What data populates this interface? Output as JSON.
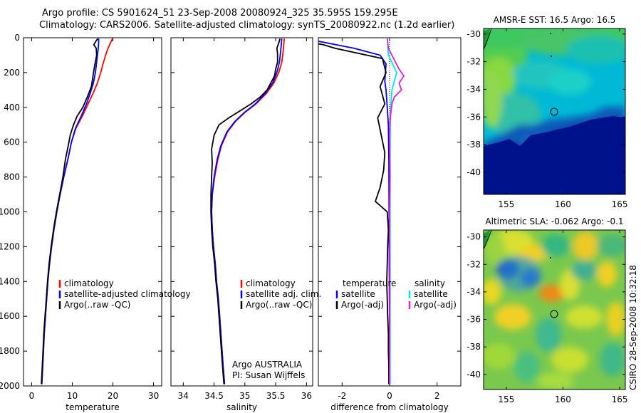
{
  "header": {
    "line1": "Argo profile: CS 5901624_51 23-Sep-2008 20080924_325 35.595S 159.295E",
    "line2": "Climatology: CARS2006. Satellite-adjusted climatology: synTS_20080922.nc (1.2d earlier)"
  },
  "side_text": "CSIRO 28-Sep-2008 10:32:18",
  "colors": {
    "climatology": "#ff0000",
    "satellite": "#0000ff",
    "argo": "#000000",
    "cyan": "#00e5ee",
    "magenta": "#e020e0"
  },
  "chart_data": [
    {
      "type": "line",
      "xlabel": "temperature",
      "ylabel": "",
      "xlim": [
        -2,
        32
      ],
      "ylim": [
        2000,
        0
      ],
      "xticks": [
        0,
        10,
        20,
        30
      ],
      "yticks": [
        0,
        200,
        400,
        600,
        800,
        1000,
        1200,
        1400,
        1600,
        1800,
        2000
      ],
      "legend": [
        "climatology",
        "satellite-adjusted climatology",
        "Argo(..raw -QC)"
      ],
      "series": [
        {
          "name": "climatology",
          "color": "#ff0000",
          "points": [
            [
              19.9,
              5
            ],
            [
              19.6,
              20
            ],
            [
              18.8,
              60
            ],
            [
              18.2,
              100
            ],
            [
              17.7,
              140
            ],
            [
              17.0,
              200
            ],
            [
              16.2,
              260
            ],
            [
              15.1,
              320
            ],
            [
              13.9,
              380
            ],
            [
              12.5,
              450
            ],
            [
              10.9,
              520
            ],
            [
              9.8,
              600
            ],
            [
              8.9,
              700
            ],
            [
              7.9,
              800
            ],
            [
              7.0,
              900
            ],
            [
              6.2,
              1000
            ],
            [
              5.5,
              1100
            ],
            [
              4.9,
              1200
            ],
            [
              4.4,
              1300
            ],
            [
              4.0,
              1400
            ],
            [
              3.7,
              1500
            ],
            [
              3.4,
              1600
            ],
            [
              3.1,
              1700
            ],
            [
              2.9,
              1800
            ],
            [
              2.7,
              1900
            ],
            [
              2.5,
              1990
            ]
          ]
        },
        {
          "name": "satellite-adjusted climatology",
          "color": "#0000ff",
          "points": [
            [
              16.5,
              5
            ],
            [
              16.5,
              20
            ],
            [
              16.4,
              60
            ],
            [
              16.2,
              100
            ],
            [
              16.0,
              140
            ],
            [
              15.7,
              200
            ],
            [
              15.2,
              260
            ],
            [
              14.4,
              320
            ],
            [
              13.5,
              380
            ],
            [
              12.2,
              450
            ],
            [
              10.8,
              520
            ],
            [
              9.8,
              600
            ],
            [
              8.9,
              700
            ],
            [
              7.9,
              800
            ],
            [
              7.0,
              900
            ],
            [
              6.2,
              1000
            ],
            [
              5.5,
              1100
            ],
            [
              4.9,
              1200
            ],
            [
              4.4,
              1300
            ],
            [
              4.0,
              1400
            ],
            [
              3.7,
              1500
            ],
            [
              3.4,
              1600
            ],
            [
              3.1,
              1700
            ],
            [
              2.9,
              1800
            ],
            [
              2.7,
              1900
            ],
            [
              2.5,
              1990
            ]
          ]
        },
        {
          "name": "Argo(..raw -QC)",
          "color": "#000000",
          "points": [
            [
              16.3,
              5
            ],
            [
              15.8,
              20
            ],
            [
              15.3,
              40
            ],
            [
              15.9,
              60
            ],
            [
              16.0,
              100
            ],
            [
              15.5,
              160
            ],
            [
              15.1,
              220
            ],
            [
              14.7,
              280
            ],
            [
              13.7,
              340
            ],
            [
              12.6,
              400
            ],
            [
              11.2,
              450
            ],
            [
              10.3,
              500
            ],
            [
              9.5,
              560
            ],
            [
              9.0,
              620
            ],
            [
              8.3,
              700
            ],
            [
              7.7,
              800
            ],
            [
              6.9,
              900
            ],
            [
              6.1,
              1000
            ],
            [
              5.4,
              1100
            ],
            [
              4.8,
              1200
            ],
            [
              4.3,
              1300
            ],
            [
              3.9,
              1400
            ],
            [
              3.6,
              1500
            ],
            [
              3.3,
              1600
            ],
            [
              3.0,
              1700
            ],
            [
              2.8,
              1800
            ],
            [
              2.6,
              1900
            ],
            [
              2.4,
              1990
            ]
          ]
        }
      ]
    },
    {
      "type": "line",
      "xlabel": "salinity",
      "xlim": [
        33.8,
        36.1
      ],
      "ylim": [
        2000,
        0
      ],
      "xticks": [
        34,
        34.5,
        35,
        35.5,
        36
      ],
      "legend": [
        "climatology",
        "satellite adj. clim.",
        "Argo(..raw -QC)"
      ],
      "annotation": [
        "Argo AUSTRALIA",
        "PI: Susan Wijffels"
      ],
      "series": [
        {
          "name": "climatology",
          "color": "#ff0000",
          "points": [
            [
              35.64,
              5
            ],
            [
              35.63,
              40
            ],
            [
              35.62,
              80
            ],
            [
              35.6,
              140
            ],
            [
              35.55,
              200
            ],
            [
              35.47,
              260
            ],
            [
              35.35,
              320
            ],
            [
              35.18,
              380
            ],
            [
              35.0,
              430
            ],
            [
              34.85,
              480
            ],
            [
              34.72,
              540
            ],
            [
              34.62,
              620
            ],
            [
              34.56,
              700
            ],
            [
              34.51,
              800
            ],
            [
              34.47,
              900
            ],
            [
              34.46,
              1000
            ],
            [
              34.47,
              1100
            ],
            [
              34.49,
              1200
            ],
            [
              34.52,
              1300
            ],
            [
              34.54,
              1400
            ],
            [
              34.57,
              1500
            ],
            [
              34.59,
              1600
            ],
            [
              34.61,
              1700
            ],
            [
              34.63,
              1800
            ],
            [
              34.65,
              1900
            ],
            [
              34.67,
              1990
            ]
          ]
        },
        {
          "name": "satellite adj. clim.",
          "color": "#0000ff",
          "points": [
            [
              35.6,
              5
            ],
            [
              35.59,
              40
            ],
            [
              35.58,
              80
            ],
            [
              35.56,
              140
            ],
            [
              35.52,
              200
            ],
            [
              35.45,
              260
            ],
            [
              35.33,
              320
            ],
            [
              35.17,
              380
            ],
            [
              34.99,
              430
            ],
            [
              34.84,
              480
            ],
            [
              34.71,
              540
            ],
            [
              34.61,
              620
            ],
            [
              34.55,
              700
            ],
            [
              34.5,
              800
            ],
            [
              34.47,
              900
            ],
            [
              34.46,
              1000
            ],
            [
              34.47,
              1100
            ],
            [
              34.49,
              1200
            ],
            [
              34.52,
              1300
            ],
            [
              34.54,
              1400
            ],
            [
              34.57,
              1500
            ],
            [
              34.59,
              1600
            ],
            [
              34.61,
              1700
            ],
            [
              34.63,
              1800
            ],
            [
              34.65,
              1900
            ],
            [
              34.67,
              1990
            ]
          ]
        },
        {
          "name": "Argo(..raw -QC)",
          "color": "#000000",
          "points": [
            [
              35.57,
              5
            ],
            [
              35.55,
              30
            ],
            [
              35.52,
              60
            ],
            [
              35.53,
              90
            ],
            [
              35.53,
              140
            ],
            [
              35.5,
              180
            ],
            [
              35.48,
              220
            ],
            [
              35.42,
              260
            ],
            [
              35.36,
              300
            ],
            [
              35.25,
              340
            ],
            [
              35.1,
              380
            ],
            [
              34.92,
              420
            ],
            [
              34.74,
              460
            ],
            [
              34.58,
              500
            ],
            [
              34.5,
              560
            ],
            [
              34.46,
              640
            ],
            [
              34.47,
              720
            ],
            [
              34.46,
              800
            ],
            [
              34.45,
              900
            ],
            [
              34.45,
              1000
            ],
            [
              34.46,
              1100
            ],
            [
              34.48,
              1200
            ],
            [
              34.51,
              1300
            ],
            [
              34.53,
              1400
            ],
            [
              34.56,
              1500
            ],
            [
              34.58,
              1600
            ],
            [
              34.6,
              1700
            ],
            [
              34.62,
              1800
            ],
            [
              34.64,
              1900
            ],
            [
              34.66,
              1990
            ]
          ]
        }
      ]
    },
    {
      "type": "line",
      "xlabel": "difference from climatology",
      "xlim": [
        -3,
        3
      ],
      "ylim": [
        2000,
        0
      ],
      "xticks": [
        -2,
        0,
        2
      ],
      "legend_temperature": {
        "header": "temperature",
        "entries": [
          "satellite",
          "Argo(-adj)"
        ]
      },
      "legend_salinity": {
        "header": "salinity",
        "entries": [
          "satellite",
          "Argo(-adj)"
        ]
      },
      "series": [
        {
          "name": "satellite",
          "group": "temperature",
          "color": "#0000ff",
          "points": [
            [
              -3.0,
              20
            ],
            [
              -1.5,
              60
            ],
            [
              -0.4,
              100
            ],
            [
              -0.15,
              150
            ],
            [
              -0.2,
              250
            ],
            [
              -0.15,
              300
            ],
            [
              -0.1,
              400
            ],
            [
              -0.05,
              500
            ],
            [
              -0.03,
              700
            ],
            [
              -0.02,
              1000
            ],
            [
              -0.01,
              1500
            ],
            [
              0,
              1990
            ]
          ]
        },
        {
          "name": "Argo(-adj)",
          "group": "temperature",
          "color": "#000000",
          "points": [
            [
              -3.3,
              5
            ],
            [
              -3.2,
              30
            ],
            [
              -2.8,
              40
            ],
            [
              -2.3,
              60
            ],
            [
              -0.3,
              120
            ],
            [
              -0.15,
              200
            ],
            [
              -0.4,
              280
            ],
            [
              -0.2,
              380
            ],
            [
              -0.5,
              460
            ],
            [
              -0.35,
              560
            ],
            [
              -0.2,
              660
            ],
            [
              -0.25,
              760
            ],
            [
              -0.4,
              860
            ],
            [
              -0.6,
              940
            ],
            [
              -0.1,
              1000
            ],
            [
              -0.05,
              1100
            ],
            [
              -0.08,
              1200
            ],
            [
              -0.1,
              1300
            ],
            [
              -0.12,
              1400
            ],
            [
              -0.1,
              1500
            ],
            [
              -0.08,
              1600
            ],
            [
              -0.05,
              1700
            ],
            [
              -0.05,
              1800
            ],
            [
              -0.03,
              1900
            ],
            [
              -0.03,
              1990
            ]
          ]
        },
        {
          "name": "satellite",
          "group": "salinity",
          "color": "#00e5ee",
          "points": [
            [
              -0.1,
              5
            ],
            [
              -0.05,
              100
            ],
            [
              0.3,
              200
            ],
            [
              0.1,
              300
            ],
            [
              0.05,
              400
            ],
            [
              0.03,
              500
            ],
            [
              0.02,
              700
            ],
            [
              0.02,
              1000
            ],
            [
              0.02,
              1300
            ],
            [
              0.02,
              1600
            ],
            [
              0.02,
              1990
            ]
          ]
        },
        {
          "name": "Argo(-adj)",
          "group": "salinity",
          "color": "#e020e0",
          "points": [
            [
              -0.1,
              5
            ],
            [
              -0.05,
              60
            ],
            [
              0.4,
              180
            ],
            [
              0.6,
              220
            ],
            [
              0.4,
              260
            ],
            [
              0.5,
              300
            ],
            [
              0.2,
              340
            ],
            [
              0.1,
              380
            ],
            [
              0.03,
              460
            ],
            [
              0.0,
              560
            ],
            [
              0.02,
              800
            ],
            [
              0.0,
              1000
            ],
            [
              0.01,
              1400
            ],
            [
              0.0,
              1990
            ]
          ]
        }
      ]
    },
    {
      "type": "heatmap",
      "title": "AMSR-E SST: 16.5 Argo: 16.5",
      "xlim": [
        153,
        165.5
      ],
      "ylim": [
        -41.6,
        -29.6
      ],
      "xticks": [
        155,
        160,
        165
      ],
      "yticks": [
        -30,
        -32,
        -34,
        -36,
        -38,
        -40
      ],
      "float_position": [
        159.3,
        -35.6
      ]
    },
    {
      "type": "heatmap",
      "title": "Altimetric SLA: -0.062 Argo: -0.1",
      "xlim": [
        153,
        165.5
      ],
      "ylim": [
        -41.1,
        -29.5
      ],
      "xticks": [
        155,
        160,
        165
      ],
      "yticks": [
        -30,
        -32,
        -34,
        -36,
        -38,
        -40
      ],
      "float_position": [
        159.3,
        -35.6
      ]
    }
  ]
}
